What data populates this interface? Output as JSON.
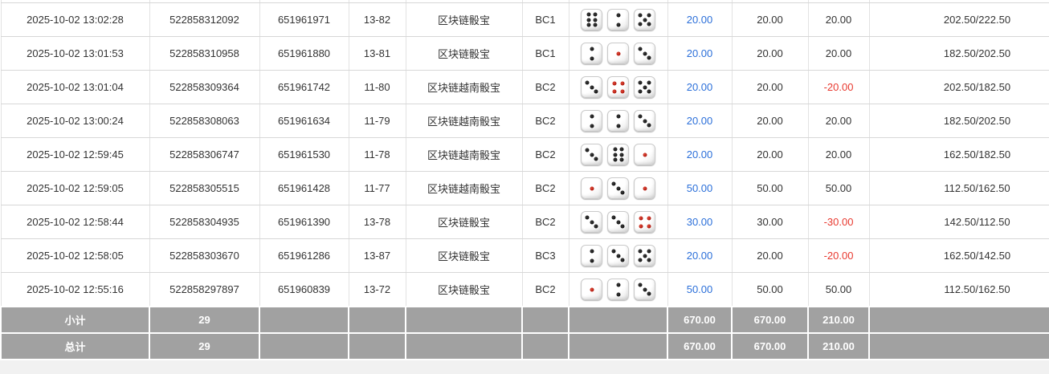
{
  "colors": {
    "bet_link_blue": "#2b6fd9",
    "negative_red": "#e8392f",
    "footer_bg": "#a1a1a1",
    "footer_text": "#ffffff",
    "pip_black": "#1d1d1d",
    "pip_red": "#cf2121"
  },
  "table": {
    "rows": [
      {
        "time": "2025-10-02 13:02:28",
        "order_no": "522858312092",
        "round_no": "651961971",
        "period": "13-82",
        "game": "区块链骰宝",
        "table_code": "BC1",
        "dice": [
          {
            "value": 6,
            "color": "black"
          },
          {
            "value": 2,
            "color": "black"
          },
          {
            "value": 5,
            "color": "black"
          }
        ],
        "bet": "20.00",
        "valid": "20.00",
        "win_loss": "20.00",
        "balance": "202.50/222.50"
      },
      {
        "time": "2025-10-02 13:01:53",
        "order_no": "522858310958",
        "round_no": "651961880",
        "period": "13-81",
        "game": "区块链骰宝",
        "table_code": "BC1",
        "dice": [
          {
            "value": 2,
            "color": "black"
          },
          {
            "value": 1,
            "color": "red"
          },
          {
            "value": 3,
            "color": "black"
          }
        ],
        "bet": "20.00",
        "valid": "20.00",
        "win_loss": "20.00",
        "balance": "182.50/202.50"
      },
      {
        "time": "2025-10-02 13:01:04",
        "order_no": "522858309364",
        "round_no": "651961742",
        "period": "11-80",
        "game": "区块链越南骰宝",
        "table_code": "BC2",
        "dice": [
          {
            "value": 3,
            "color": "black"
          },
          {
            "value": 4,
            "color": "red"
          },
          {
            "value": 5,
            "color": "black"
          }
        ],
        "bet": "20.00",
        "valid": "20.00",
        "win_loss": "-20.00",
        "balance": "202.50/182.50"
      },
      {
        "time": "2025-10-02 13:00:24",
        "order_no": "522858308063",
        "round_no": "651961634",
        "period": "11-79",
        "game": "区块链越南骰宝",
        "table_code": "BC2",
        "dice": [
          {
            "value": 2,
            "color": "black"
          },
          {
            "value": 2,
            "color": "black"
          },
          {
            "value": 3,
            "color": "black"
          }
        ],
        "bet": "20.00",
        "valid": "20.00",
        "win_loss": "20.00",
        "balance": "182.50/202.50"
      },
      {
        "time": "2025-10-02 12:59:45",
        "order_no": "522858306747",
        "round_no": "651961530",
        "period": "11-78",
        "game": "区块链越南骰宝",
        "table_code": "BC2",
        "dice": [
          {
            "value": 3,
            "color": "black"
          },
          {
            "value": 6,
            "color": "black"
          },
          {
            "value": 1,
            "color": "red"
          }
        ],
        "bet": "20.00",
        "valid": "20.00",
        "win_loss": "20.00",
        "balance": "162.50/182.50"
      },
      {
        "time": "2025-10-02 12:59:05",
        "order_no": "522858305515",
        "round_no": "651961428",
        "period": "11-77",
        "game": "区块链越南骰宝",
        "table_code": "BC2",
        "dice": [
          {
            "value": 1,
            "color": "red"
          },
          {
            "value": 3,
            "color": "black"
          },
          {
            "value": 1,
            "color": "red"
          }
        ],
        "bet": "50.00",
        "valid": "50.00",
        "win_loss": "50.00",
        "balance": "112.50/162.50"
      },
      {
        "time": "2025-10-02 12:58:44",
        "order_no": "522858304935",
        "round_no": "651961390",
        "period": "13-78",
        "game": "区块链骰宝",
        "table_code": "BC2",
        "dice": [
          {
            "value": 3,
            "color": "black"
          },
          {
            "value": 3,
            "color": "black"
          },
          {
            "value": 4,
            "color": "red"
          }
        ],
        "bet": "30.00",
        "valid": "30.00",
        "win_loss": "-30.00",
        "balance": "142.50/112.50"
      },
      {
        "time": "2025-10-02 12:58:05",
        "order_no": "522858303670",
        "round_no": "651961286",
        "period": "13-87",
        "game": "区块链骰宝",
        "table_code": "BC3",
        "dice": [
          {
            "value": 2,
            "color": "black"
          },
          {
            "value": 3,
            "color": "black"
          },
          {
            "value": 5,
            "color": "black"
          }
        ],
        "bet": "20.00",
        "valid": "20.00",
        "win_loss": "-20.00",
        "balance": "162.50/142.50"
      },
      {
        "time": "2025-10-02 12:55:16",
        "order_no": "522858297897",
        "round_no": "651960839",
        "period": "13-72",
        "game": "区块链骰宝",
        "table_code": "BC2",
        "dice": [
          {
            "value": 1,
            "color": "red"
          },
          {
            "value": 2,
            "color": "black"
          },
          {
            "value": 3,
            "color": "black"
          }
        ],
        "bet": "50.00",
        "valid": "50.00",
        "win_loss": "50.00",
        "balance": "112.50/162.50"
      }
    ],
    "footer_rows": [
      {
        "label": "小计",
        "count": "29",
        "bet_total": "670.00",
        "valid_total": "670.00",
        "win_loss_total": "210.00"
      },
      {
        "label": "总计",
        "count": "29",
        "bet_total": "670.00",
        "valid_total": "670.00",
        "win_loss_total": "210.00"
      }
    ]
  }
}
